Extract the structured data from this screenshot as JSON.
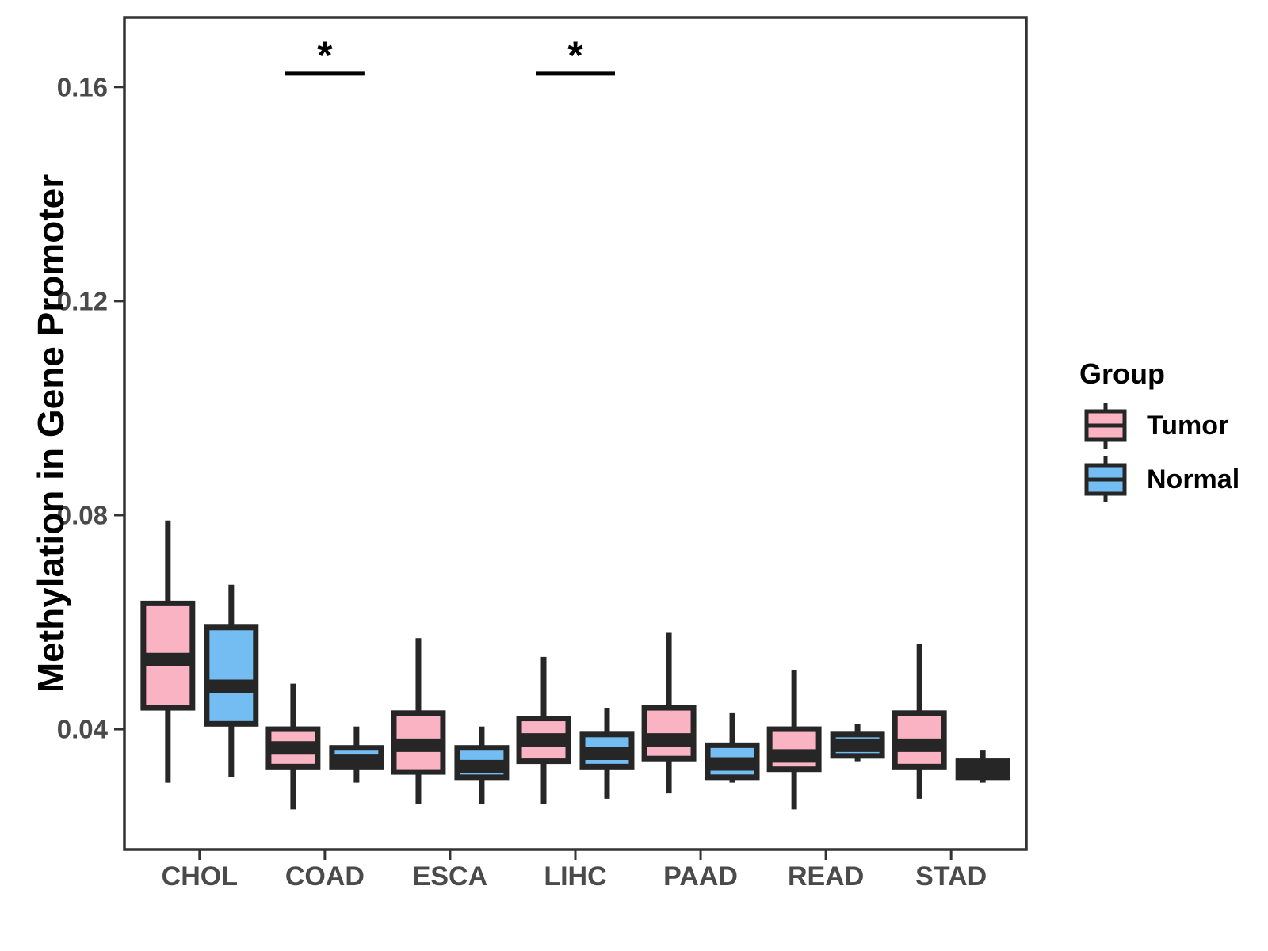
{
  "chart_data": {
    "type": "grouped_boxplot",
    "title": "",
    "xlabel": "",
    "ylabel": "Methylation in Gene Promoter",
    "categories": [
      "CHOL",
      "COAD",
      "ESCA",
      "LIHC",
      "PAAD",
      "READ",
      "STAD"
    ],
    "yticks": [
      0.04,
      0.08,
      0.12,
      0.16
    ],
    "ytick_labels": [
      "0.04",
      "0.08",
      "0.12",
      "0.16"
    ],
    "ylim": [
      0.0175,
      0.173
    ],
    "grid": "off",
    "legend": {
      "title": "Group",
      "position": "right",
      "items": [
        {
          "label": "Tumor",
          "color": "#FAB3C2"
        },
        {
          "label": "Normal",
          "color": "#73BDF2"
        }
      ]
    },
    "series": [
      {
        "name": "Tumor",
        "color": "#FAB3C2",
        "boxes": [
          {
            "category": "CHOL",
            "whisker_low": 0.03,
            "q1": 0.044,
            "median": 0.053,
            "q3": 0.0635,
            "whisker_high": 0.079
          },
          {
            "category": "COAD",
            "whisker_low": 0.025,
            "q1": 0.033,
            "median": 0.0365,
            "q3": 0.04,
            "whisker_high": 0.0485
          },
          {
            "category": "ESCA",
            "whisker_low": 0.026,
            "q1": 0.032,
            "median": 0.037,
            "q3": 0.043,
            "whisker_high": 0.057
          },
          {
            "category": "LIHC",
            "whisker_low": 0.026,
            "q1": 0.034,
            "median": 0.038,
            "q3": 0.042,
            "whisker_high": 0.0535
          },
          {
            "category": "PAAD",
            "whisker_low": 0.028,
            "q1": 0.0345,
            "median": 0.038,
            "q3": 0.044,
            "whisker_high": 0.058
          },
          {
            "category": "READ",
            "whisker_low": 0.025,
            "q1": 0.0325,
            "median": 0.035,
            "q3": 0.04,
            "whisker_high": 0.051
          },
          {
            "category": "STAD",
            "whisker_low": 0.027,
            "q1": 0.033,
            "median": 0.037,
            "q3": 0.043,
            "whisker_high": 0.056
          }
        ]
      },
      {
        "name": "Normal",
        "color": "#73BDF2",
        "boxes": [
          {
            "category": "CHOL",
            "whisker_low": 0.031,
            "q1": 0.041,
            "median": 0.048,
            "q3": 0.059,
            "whisker_high": 0.067
          },
          {
            "category": "COAD",
            "whisker_low": 0.03,
            "q1": 0.033,
            "median": 0.034,
            "q3": 0.0365,
            "whisker_high": 0.0405
          },
          {
            "category": "ESCA",
            "whisker_low": 0.026,
            "q1": 0.031,
            "median": 0.033,
            "q3": 0.0365,
            "whisker_high": 0.0405
          },
          {
            "category": "LIHC",
            "whisker_low": 0.027,
            "q1": 0.033,
            "median": 0.0355,
            "q3": 0.039,
            "whisker_high": 0.044
          },
          {
            "category": "PAAD",
            "whisker_low": 0.03,
            "q1": 0.031,
            "median": 0.0335,
            "q3": 0.037,
            "whisker_high": 0.043
          },
          {
            "category": "READ",
            "whisker_low": 0.034,
            "q1": 0.035,
            "median": 0.037,
            "q3": 0.039,
            "whisker_high": 0.041
          },
          {
            "category": "STAD",
            "whisker_low": 0.03,
            "q1": 0.031,
            "median": 0.0325,
            "q3": 0.034,
            "whisker_high": 0.036
          }
        ]
      }
    ],
    "annotations": [
      {
        "category": "COAD",
        "label": "*",
        "bar_y": 0.1625
      },
      {
        "category": "LIHC",
        "label": "*",
        "bar_y": 0.1625
      }
    ],
    "colors": {
      "box_border": "#262626",
      "panel_border": "#333333",
      "tick_color": "#333333",
      "tick_label_color": "#4A4A4A",
      "annotation_color": "#000000",
      "background": "#FFFFFF"
    }
  }
}
